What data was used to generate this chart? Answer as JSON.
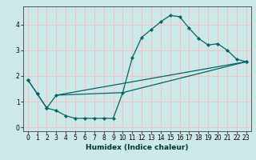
{
  "xlabel": "Humidex (Indice chaleur)",
  "bg_color": "#cce8e8",
  "grid_color": "#f5c0c0",
  "line_color": "#006666",
  "xlim": [
    -0.5,
    23.5
  ],
  "ylim": [
    -0.15,
    4.7
  ],
  "xticks": [
    0,
    1,
    2,
    3,
    4,
    5,
    6,
    7,
    8,
    9,
    10,
    11,
    12,
    13,
    14,
    15,
    16,
    17,
    18,
    19,
    20,
    21,
    22,
    23
  ],
  "yticks": [
    0,
    1,
    2,
    3,
    4
  ],
  "line1_x": [
    0,
    1,
    2,
    3,
    4,
    5,
    6,
    7,
    8,
    9,
    10,
    11,
    12,
    13,
    14,
    15,
    16,
    17,
    18,
    19,
    20,
    21,
    22,
    23
  ],
  "line1_y": [
    1.85,
    1.3,
    0.75,
    0.65,
    0.45,
    0.35,
    0.35,
    0.35,
    0.35,
    0.35,
    1.35,
    2.7,
    3.5,
    3.8,
    4.1,
    4.35,
    4.3,
    3.85,
    3.45,
    3.2,
    3.25,
    3.0,
    2.65,
    2.55
  ],
  "line2_x": [
    0,
    1,
    2,
    3,
    23
  ],
  "line2_y": [
    1.85,
    1.3,
    0.75,
    1.25,
    2.55
  ],
  "line3_x": [
    3,
    10,
    23
  ],
  "line3_y": [
    1.25,
    1.35,
    2.55
  ],
  "xlabel_fontsize": 6.5,
  "tick_fontsize": 5.5
}
